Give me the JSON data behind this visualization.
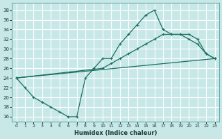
{
  "xlabel": "Humidex (Indice chaleur)",
  "xlim": [
    -0.5,
    23.5
  ],
  "ylim": [
    15,
    39.5
  ],
  "xticks": [
    0,
    1,
    2,
    3,
    4,
    5,
    6,
    7,
    8,
    9,
    10,
    11,
    12,
    13,
    14,
    15,
    16,
    17,
    18,
    19,
    20,
    21,
    22,
    23
  ],
  "yticks": [
    16,
    18,
    20,
    22,
    24,
    26,
    28,
    30,
    32,
    34,
    36,
    38
  ],
  "bg_color": "#c8e8e8",
  "line_color": "#1a7060",
  "line1_x": [
    0,
    1,
    2,
    3,
    4,
    5,
    6,
    7,
    8,
    9,
    10,
    11,
    12,
    13,
    14,
    15,
    16,
    17,
    18,
    19,
    20,
    21,
    22,
    23
  ],
  "line1_y": [
    24,
    22,
    20,
    19,
    18,
    17,
    16,
    16,
    24,
    26,
    28,
    28,
    31,
    33,
    35,
    37,
    38,
    34,
    33,
    33,
    32,
    31,
    29,
    28
  ],
  "line2_x": [
    0,
    10,
    11,
    12,
    13,
    14,
    15,
    16,
    17,
    18,
    19,
    20,
    21,
    22,
    23
  ],
  "line2_y": [
    24,
    26,
    27,
    28,
    29,
    30,
    31,
    32,
    33,
    33,
    33,
    33,
    32,
    29,
    28
  ],
  "line3_x": [
    0,
    23
  ],
  "line3_y": [
    24,
    28
  ]
}
